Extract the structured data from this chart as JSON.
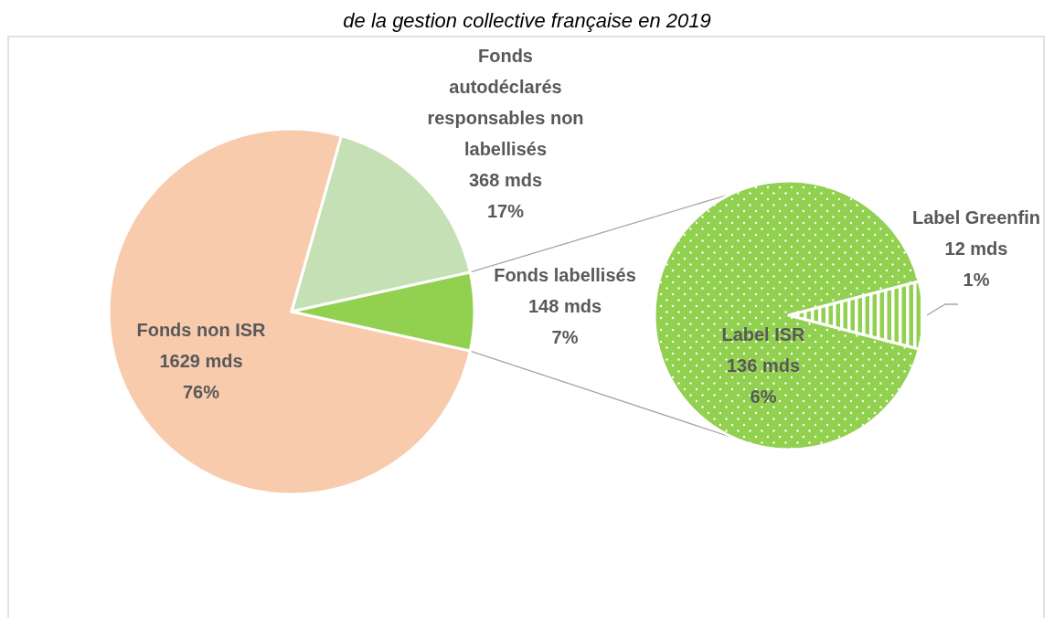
{
  "chart_data": [
    {
      "type": "pie",
      "title": "de la gestion collective française en 2019",
      "categories": [
        "Fonds non ISR",
        "Fonds autodéclarés responsables non labellisés",
        "Fonds labellisés"
      ],
      "values": [
        1629,
        368,
        148
      ],
      "colors": [
        "#f8cbad",
        "#c5e0b4",
        "#92d050"
      ],
      "value_labels": [
        "1629 mds\n76%",
        "368 mds\n17%",
        "148 mds\n7%"
      ]
    },
    {
      "type": "pie",
      "categories": [
        "Label ISR",
        "Label Greenfin"
      ],
      "values": [
        136,
        12
      ],
      "colors": [
        "#92d050",
        "#92d050"
      ],
      "value_labels": [
        "136 mds\n6%",
        "12 mds\n1%"
      ]
    }
  ]
}
